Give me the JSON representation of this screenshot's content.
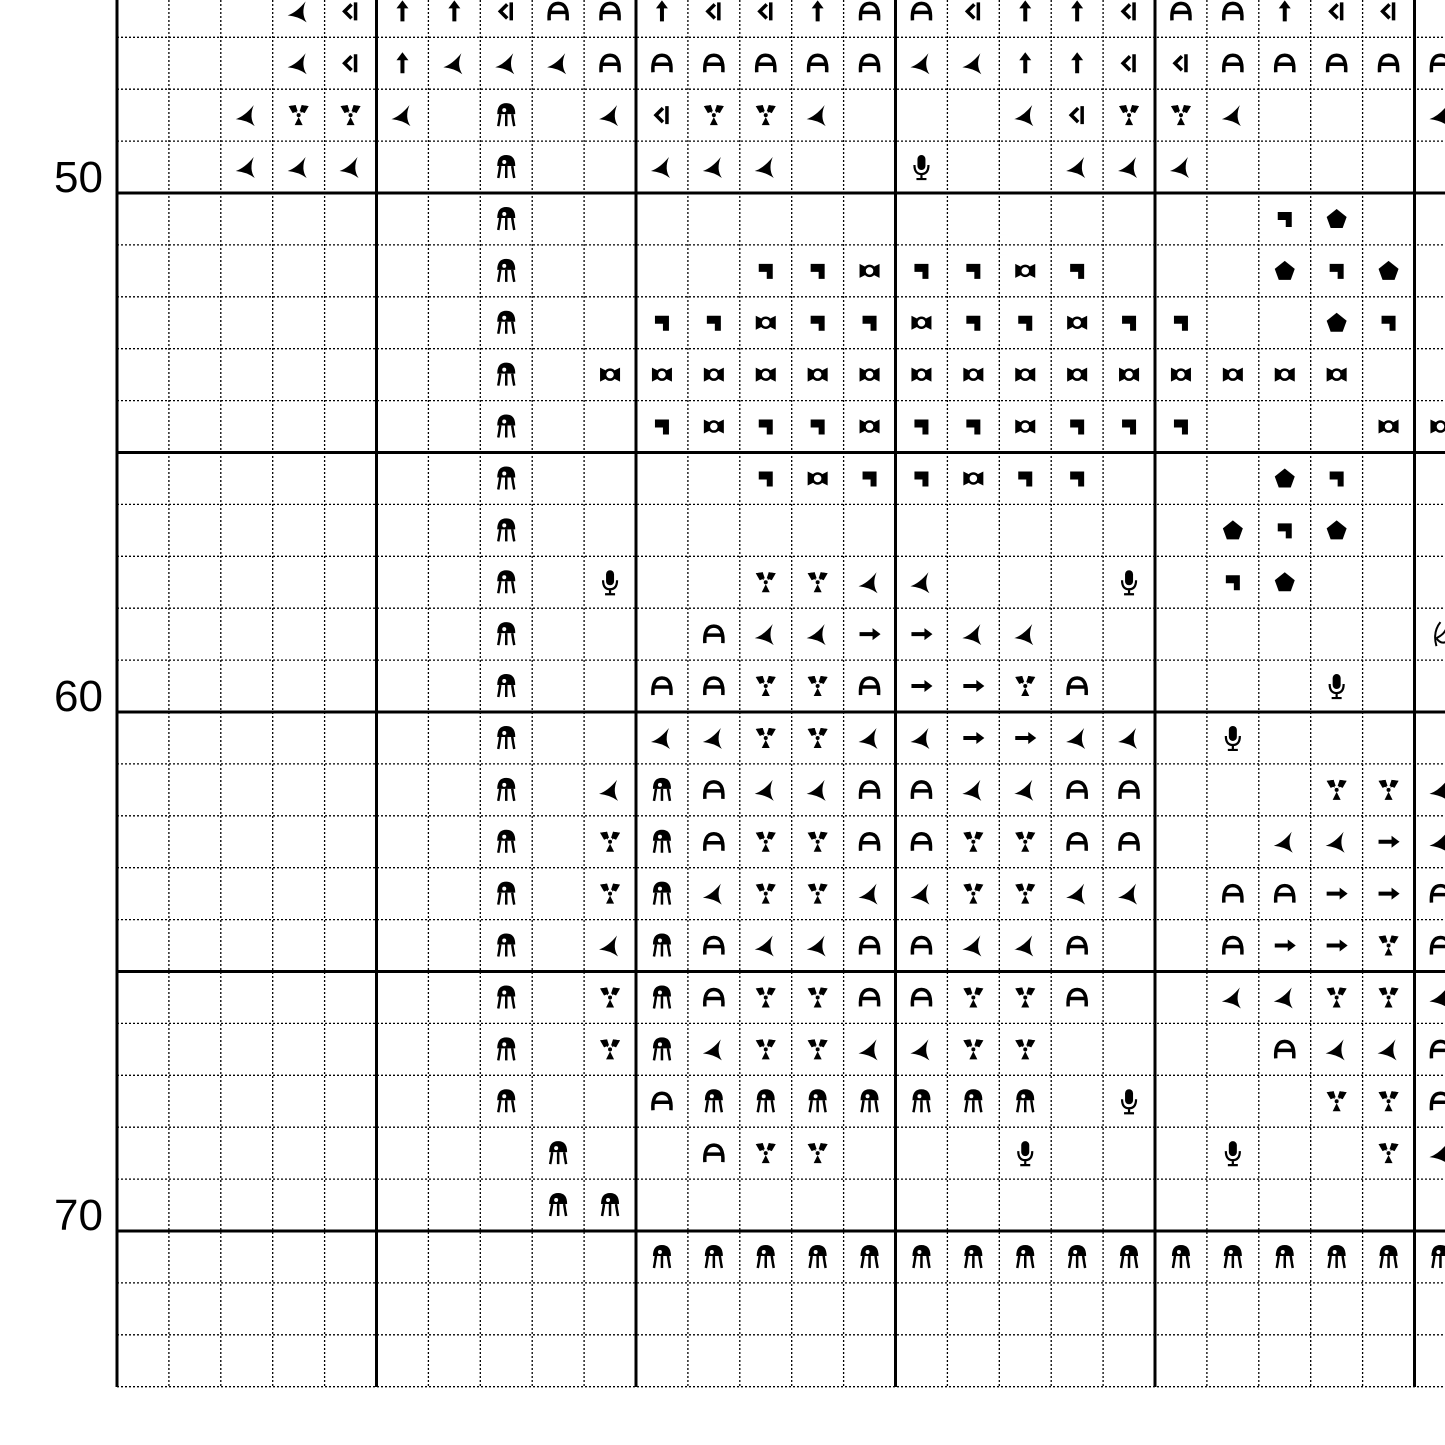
{
  "row_labels": [
    "50",
    "60",
    "70"
  ]
}
